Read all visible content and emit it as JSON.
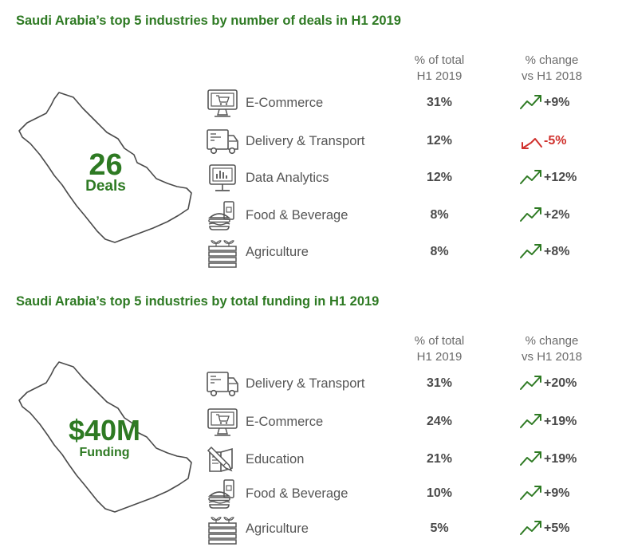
{
  "colors": {
    "accent_green": "#2e7a23",
    "negative_red": "#d0312d",
    "text_gray": "#4a4a4a",
    "icon_gray": "#555555"
  },
  "deals_section": {
    "title": "Saudi Arabia’s top 5 industries by number of deals in H1 2019",
    "col_pct_line1": "% of total",
    "col_pct_line2": "H1 2019",
    "col_change_line1": "% change",
    "col_change_line2": "vs H1 2018",
    "big_number": "26",
    "big_label": "Deals",
    "rows": [
      {
        "industry": "E-Commerce",
        "icon": "computer-cart-icon",
        "pct": "31%",
        "change": "+9%",
        "direction": "up"
      },
      {
        "industry": "Delivery & Transport",
        "icon": "delivery-truck-icon",
        "pct": "12%",
        "change": "-5%",
        "direction": "down"
      },
      {
        "industry": "Data Analytics",
        "icon": "analytics-monitor-icon",
        "pct": "12%",
        "change": "+12%",
        "direction": "up"
      },
      {
        "industry": "Food & Beverage",
        "icon": "food-beverage-icon",
        "pct": "8%",
        "change": "+2%",
        "direction": "up"
      },
      {
        "industry": "Agriculture",
        "icon": "agriculture-crate-icon",
        "pct": "8%",
        "change": "+8%",
        "direction": "up"
      }
    ]
  },
  "funding_section": {
    "title": "Saudi Arabia’s top 5 industries by total funding in H1 2019",
    "col_pct_line1": "% of total",
    "col_pct_line2": "H1 2019",
    "col_change_line1": "% change",
    "col_change_line2": "vs H1 2018",
    "big_number": "$40M",
    "big_label": "Funding",
    "rows": [
      {
        "industry": "Delivery & Transport",
        "icon": "delivery-truck-icon",
        "pct": "31%",
        "change": "+20%",
        "direction": "up"
      },
      {
        "industry": "E-Commerce",
        "icon": "computer-cart-icon",
        "pct": "24%",
        "change": "+19%",
        "direction": "up"
      },
      {
        "industry": "Education",
        "icon": "book-pencil-icon",
        "pct": "21%",
        "change": "+19%",
        "direction": "up"
      },
      {
        "industry": "Food & Beverage",
        "icon": "food-beverage-icon",
        "pct": "10%",
        "change": "+9%",
        "direction": "up"
      },
      {
        "industry": "Agriculture",
        "icon": "agriculture-crate-icon",
        "pct": "5%",
        "change": "+5%",
        "direction": "up"
      }
    ]
  }
}
